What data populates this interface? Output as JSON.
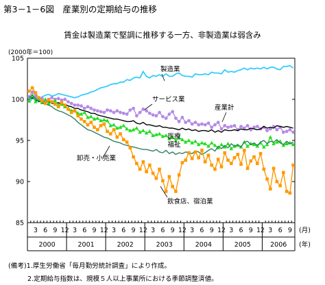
{
  "figure_title": "第3－1－6図　産業別の定期給与の推移",
  "chart_title": "賃金は製造業で堅調に推移する一方、非製造業は弱含み",
  "y_unit_label": "(2000年＝100)",
  "x_unit_month": "(月)",
  "x_unit_year": "(年)",
  "notes": [
    "(備考)1.厚生労働省「毎月勤労統計調査」により作成。",
    "2.定期給与指数は、規模５人以上事業所における季節調整済値。"
  ],
  "colors": {
    "manufacturing": "#33ccff",
    "services": "#b48ae6",
    "all_industries": "#000000",
    "medical_welfare": "#22dd22",
    "wholesale_retail": "#2f7f5f",
    "food_lodging": "#ff9900"
  },
  "chart_data": {
    "type": "line",
    "title": "賃金は製造業で堅調に推移する一方、非製造業は弱含み",
    "ylabel": "(2000年＝100)",
    "ylim": [
      85,
      105
    ],
    "yticks": [
      85,
      90,
      95,
      100,
      105
    ],
    "xlim": [
      "2000-01",
      "2006-10"
    ],
    "month_ticks": [
      "3",
      "6",
      "9",
      "12"
    ],
    "years": [
      "2000",
      "2001",
      "2002",
      "2003",
      "2004",
      "2005",
      "2006"
    ],
    "x": [
      "2000-01",
      "2000-02",
      "2000-03",
      "2000-04",
      "2000-05",
      "2000-06",
      "2000-07",
      "2000-08",
      "2000-09",
      "2000-10",
      "2000-11",
      "2000-12",
      "2001-01",
      "2001-02",
      "2001-03",
      "2001-04",
      "2001-05",
      "2001-06",
      "2001-07",
      "2001-08",
      "2001-09",
      "2001-10",
      "2001-11",
      "2001-12",
      "2002-01",
      "2002-02",
      "2002-03",
      "2002-04",
      "2002-05",
      "2002-06",
      "2002-07",
      "2002-08",
      "2002-09",
      "2002-10",
      "2002-11",
      "2002-12",
      "2003-01",
      "2003-02",
      "2003-03",
      "2003-04",
      "2003-05",
      "2003-06",
      "2003-07",
      "2003-08",
      "2003-09",
      "2003-10",
      "2003-11",
      "2003-12",
      "2004-01",
      "2004-02",
      "2004-03",
      "2004-04",
      "2004-05",
      "2004-06",
      "2004-07",
      "2004-08",
      "2004-09",
      "2004-10",
      "2004-11",
      "2004-12",
      "2005-01",
      "2005-02",
      "2005-03",
      "2005-04",
      "2005-05",
      "2005-06",
      "2005-07",
      "2005-08",
      "2005-09",
      "2005-10",
      "2005-11",
      "2005-12",
      "2006-01",
      "2006-02",
      "2006-03",
      "2006-04",
      "2006-05",
      "2006-06",
      "2006-07",
      "2006-08",
      "2006-09",
      "2006-10"
    ],
    "series": [
      {
        "name": "製造業",
        "marker": "none",
        "values": [
          99.6,
          100.1,
          100.2,
          100.0,
          100.3,
          100.5,
          100.6,
          100.4,
          100.5,
          100.7,
          100.6,
          100.5,
          100.4,
          100.3,
          100.2,
          100.3,
          100.5,
          100.6,
          100.7,
          100.9,
          101.0,
          101.2,
          101.4,
          101.5,
          101.6,
          101.8,
          101.9,
          101.9,
          102.1,
          102.1,
          102.4,
          102.3,
          102.6,
          102.7,
          102.6,
          103.4,
          102.8,
          102.6,
          102.9,
          102.8,
          103.0,
          102.8,
          103.1,
          102.8,
          102.8,
          103.1,
          103.2,
          102.9,
          102.8,
          102.8,
          102.7,
          103.1,
          103.0,
          103.0,
          103.1,
          103.0,
          103.3,
          103.2,
          103.2,
          103.1,
          103.6,
          103.3,
          103.4,
          103.3,
          103.5,
          103.6,
          103.8,
          103.6,
          103.8,
          103.7,
          103.8,
          103.7,
          103.9,
          103.7,
          103.9,
          103.9,
          103.7,
          103.6,
          104.0,
          104.0,
          104.1,
          103.8
        ]
      },
      {
        "name": "サービス業",
        "marker": "circle",
        "values": [
          100.3,
          100.9,
          100.4,
          99.9,
          100.1,
          99.8,
          100.0,
          100.2,
          100.0,
          100.1,
          99.9,
          100.0,
          99.7,
          99.5,
          99.3,
          99.3,
          99.2,
          98.9,
          99.1,
          98.9,
          98.7,
          98.6,
          98.5,
          98.4,
          98.7,
          98.6,
          98.4,
          98.6,
          98.4,
          98.3,
          98.2,
          98.7,
          98.9,
          98.0,
          98.4,
          98.8,
          98.6,
          98.3,
          98.1,
          98.0,
          98.4,
          97.9,
          97.7,
          98.2,
          98.5,
          97.7,
          97.3,
          97.8,
          97.2,
          97.4,
          97.0,
          97.2,
          96.9,
          97.0,
          96.9,
          97.1,
          96.6,
          96.9,
          97.2,
          96.4,
          96.8,
          96.6,
          96.7,
          96.8,
          96.3,
          96.7,
          96.5,
          96.8,
          96.3,
          96.6,
          96.7,
          96.4,
          96.6,
          96.2,
          96.4,
          96.7,
          96.3,
          96.6,
          96.0,
          96.1,
          96.3,
          96.0
        ]
      },
      {
        "name": "産業計",
        "marker": "none",
        "values": [
          100.0,
          100.2,
          99.9,
          99.7,
          99.8,
          99.6,
          99.7,
          99.5,
          99.5,
          99.6,
          99.4,
          99.4,
          99.2,
          99.1,
          98.9,
          98.9,
          98.7,
          98.6,
          98.5,
          98.3,
          98.3,
          98.1,
          98.0,
          97.9,
          97.8,
          97.7,
          97.6,
          97.6,
          97.5,
          97.4,
          97.3,
          97.3,
          97.4,
          97.1,
          97.0,
          97.2,
          96.9,
          96.9,
          96.8,
          96.7,
          96.8,
          96.6,
          96.6,
          96.5,
          96.5,
          96.4,
          96.3,
          96.5,
          96.3,
          96.4,
          96.2,
          96.3,
          96.1,
          96.2,
          96.2,
          96.1,
          96.3,
          96.0,
          96.2,
          96.0,
          96.3,
          96.2,
          96.2,
          96.3,
          96.2,
          96.4,
          96.3,
          96.3,
          96.5,
          96.4,
          96.3,
          96.4,
          96.7,
          96.5,
          96.6,
          96.5,
          96.8,
          96.7,
          96.6,
          96.7,
          96.6,
          96.5
        ]
      },
      {
        "name": "医療福祉",
        "marker": "triangle",
        "values": [
          99.8,
          100.5,
          99.7,
          99.9,
          99.6,
          100.0,
          99.5,
          99.7,
          99.8,
          99.3,
          99.4,
          99.1,
          98.9,
          98.6,
          98.7,
          98.3,
          98.2,
          98.4,
          97.8,
          97.9,
          97.6,
          97.7,
          97.4,
          97.5,
          97.4,
          96.8,
          96.9,
          96.5,
          96.6,
          96.8,
          96.4,
          96.2,
          96.3,
          96.5,
          96.0,
          96.2,
          95.9,
          96.1,
          95.6,
          95.7,
          95.8,
          95.5,
          95.6,
          95.2,
          95.4,
          95.0,
          95.3,
          95.1,
          94.8,
          95.0,
          94.7,
          94.9,
          94.5,
          94.7,
          94.6,
          94.3,
          94.7,
          94.4,
          94.1,
          94.5,
          94.2,
          94.6,
          94.0,
          94.3,
          94.4,
          94.2,
          94.8,
          94.3,
          94.6,
          94.5,
          94.3,
          94.7,
          94.2,
          94.5,
          95.4,
          94.6,
          94.8,
          94.9,
          94.4,
          94.6,
          94.7,
          94.5
        ]
      },
      {
        "name": "卸売・小売業",
        "marker": "none",
        "values": [
          100.2,
          100.5,
          100.1,
          99.8,
          99.6,
          99.4,
          99.3,
          99.1,
          98.8,
          98.6,
          98.5,
          98.3,
          98.1,
          97.9,
          97.6,
          97.2,
          96.9,
          96.6,
          96.3,
          96.2,
          96.0,
          95.8,
          95.6,
          95.4,
          95.3,
          95.1,
          94.9,
          94.8,
          94.7,
          94.5,
          94.4,
          94.3,
          94.2,
          94.1,
          94.0,
          93.9,
          93.9,
          93.8,
          93.7,
          93.9,
          93.6,
          93.5,
          93.8,
          93.4,
          93.6,
          93.3,
          93.5,
          93.4,
          93.6,
          93.5,
          93.4,
          93.7,
          93.6,
          93.3,
          93.5,
          93.8,
          94.0,
          93.7,
          94.3,
          94.0,
          94.4,
          94.1,
          94.6,
          94.3,
          94.5,
          94.2,
          94.8,
          94.9,
          94.5,
          94.7,
          94.4,
          94.8,
          95.0,
          94.6,
          94.9,
          94.8,
          95.1,
          94.7,
          94.5,
          94.9,
          94.6,
          94.8
        ]
      },
      {
        "name": "飲食店、宿泊業",
        "marker": "square",
        "values": [
          101.0,
          101.4,
          100.8,
          100.2,
          99.8,
          99.5,
          99.9,
          99.7,
          99.4,
          99.1,
          99.6,
          99.3,
          98.8,
          98.4,
          98.6,
          98.0,
          97.6,
          97.3,
          96.9,
          97.2,
          96.6,
          96.3,
          96.8,
          97.0,
          96.1,
          95.8,
          96.3,
          95.4,
          95.8,
          95.1,
          94.8,
          94.1,
          93.0,
          92.2,
          91.5,
          92.4,
          91.2,
          92.0,
          91.0,
          90.4,
          91.5,
          90.1,
          88.8,
          90.6,
          89.4,
          88.8,
          90.8,
          92.3,
          92.6,
          93.5,
          92.8,
          93.6,
          92.9,
          93.8,
          92.4,
          93.2,
          92.0,
          91.5,
          92.7,
          91.8,
          93.5,
          92.6,
          92.2,
          92.9,
          93.3,
          92.1,
          93.8,
          91.6,
          92.5,
          93.0,
          92.2,
          93.4,
          91.5,
          90.3,
          89.1,
          91.6,
          90.0,
          89.5,
          91.1,
          88.8,
          88.6,
          92.0
        ]
      }
    ],
    "annotations": [
      {
        "label": "製造業"
      },
      {
        "label": "サービス業"
      },
      {
        "label": "産業計"
      },
      {
        "label": "医療\n福祉"
      },
      {
        "label": "卸売・小売業"
      },
      {
        "label": "飲食店、宿泊業"
      }
    ]
  }
}
